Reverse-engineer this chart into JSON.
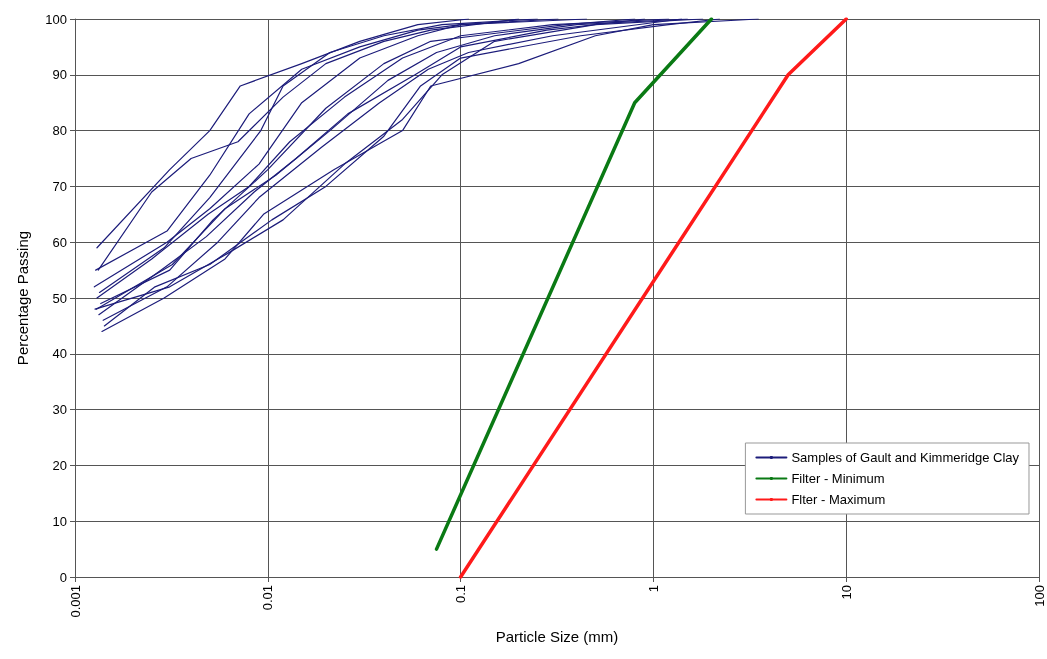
{
  "chart_data": {
    "type": "line",
    "xlabel": "Particle Size (mm)",
    "ylabel": "Percentage Passing",
    "log": "x",
    "xlim": [
      0.001,
      100
    ],
    "xticks": [
      0.001,
      0.01,
      0.1,
      1,
      10,
      100
    ],
    "ylim": [
      0,
      100
    ],
    "yticks": [
      0,
      10,
      20,
      30,
      40,
      50,
      60,
      70,
      80,
      90,
      100
    ],
    "grid": true,
    "legend": "bottom right",
    "marker": "none",
    "series": [
      {
        "name": "Samples of Gault and Kimmeridge Clay",
        "color": "#1c1c7a",
        "x": [
          0.0013,
          0.0031,
          0.005,
          0.0072,
          0.015,
          0.03,
          0.06,
          0.11
        ],
        "values": [
          59,
          73,
          80,
          88,
          92,
          96,
          99,
          100
        ]
      },
      {
        "color": "#1c1c7a",
        "x": [
          0.00128,
          0.003,
          0.005,
          0.008,
          0.015,
          0.03,
          0.06,
          0.1,
          0.45
        ],
        "values": [
          55,
          62,
          72,
          83,
          91,
          95,
          98,
          99,
          100
        ]
      },
      {
        "color": "#1c1c7a",
        "x": [
          0.00132,
          0.0025,
          0.004,
          0.007,
          0.012,
          0.02,
          0.04,
          0.07,
          0.2
        ],
        "values": [
          55,
          69,
          75,
          78,
          86,
          92,
          96,
          98,
          100
        ]
      },
      {
        "color": "#1c1c7a",
        "x": [
          0.00126,
          0.003,
          0.005,
          0.009,
          0.015,
          0.03,
          0.06,
          0.1,
          0.32
        ],
        "values": [
          52,
          60,
          66,
          74,
          85,
          93,
          97,
          99,
          100
        ]
      },
      {
        "color": "#1c1c7a",
        "x": [
          0.00134,
          0.0029,
          0.005,
          0.0092,
          0.012,
          0.021,
          0.04,
          0.08,
          0.25
        ],
        "values": [
          51,
          59,
          68,
          80,
          88,
          94,
          97,
          99,
          100
        ]
      },
      {
        "color": "#1c1c7a",
        "x": [
          0.0013,
          0.0025,
          0.0049,
          0.008,
          0.013,
          0.025,
          0.05,
          0.1,
          0.3,
          1.2
        ],
        "values": [
          50,
          57,
          65,
          70,
          78,
          86,
          93,
          97,
          99,
          100
        ]
      },
      {
        "color": "#1c1c7a",
        "x": [
          0.00136,
          0.0031,
          0.0052,
          0.01,
          0.02,
          0.04,
          0.07,
          0.12,
          0.35,
          0.8
        ],
        "values": [
          49,
          55,
          64,
          73,
          84,
          92,
          96,
          97,
          99,
          100
        ]
      },
      {
        "color": "#1c1c7a",
        "x": [
          0.00129,
          0.0032,
          0.006,
          0.011,
          0.021,
          0.042,
          0.075,
          0.15,
          0.4,
          1.5
        ],
        "values": [
          48,
          56,
          66,
          72,
          80,
          89,
          94,
          97,
          99,
          100
        ]
      },
      {
        "color": "#1c1c7a",
        "x": [
          0.00133,
          0.0028,
          0.0048,
          0.0085,
          0.014,
          0.026,
          0.058,
          0.1,
          0.28,
          0.9
        ],
        "values": [
          47,
          55,
          61,
          69,
          75,
          83,
          90,
          95,
          98,
          100
        ]
      },
      {
        "color": "#1c1c7a",
        "x": [
          0.0014,
          0.003,
          0.0055,
          0.009,
          0.019,
          0.038,
          0.068,
          0.11,
          0.3,
          1.4
        ],
        "values": [
          46,
          52,
          60,
          68,
          77,
          85,
          91,
          94,
          97,
          100
        ]
      },
      {
        "color": "#1c1c7a",
        "x": [
          0.00142,
          0.0026,
          0.005,
          0.0105,
          0.02,
          0.04,
          0.062,
          0.1,
          0.42,
          1.2,
          2.2
        ],
        "values": [
          45,
          52,
          56,
          64,
          70,
          79,
          88,
          93,
          97,
          99,
          100
        ]
      },
      {
        "color": "#1c1c7a",
        "x": [
          0.00127,
          0.0031,
          0.0062,
          0.012,
          0.025,
          0.05,
          0.08,
          0.15,
          0.5,
          1.8
        ],
        "values": [
          48,
          52,
          58,
          64,
          74,
          82,
          90,
          96,
          99,
          100
        ]
      },
      {
        "color": "#1c1c7a",
        "x": [
          0.00138,
          0.0029,
          0.006,
          0.0095,
          0.022,
          0.05,
          0.07,
          0.2,
          0.5,
          1,
          3.5
        ],
        "values": [
          44,
          50,
          57,
          65,
          73,
          80,
          88,
          92,
          97,
          99,
          100
        ]
      },
      {
        "name": "Filter - Minimum",
        "color": "#0a7a14",
        "x": [
          0.075,
          0.8,
          2
        ],
        "values": [
          5,
          85,
          100
        ]
      },
      {
        "name": "Flter - Maximum",
        "color": "#ff1a1a",
        "x": [
          0.1,
          5,
          10
        ],
        "values": [
          0,
          90,
          100
        ]
      }
    ]
  }
}
